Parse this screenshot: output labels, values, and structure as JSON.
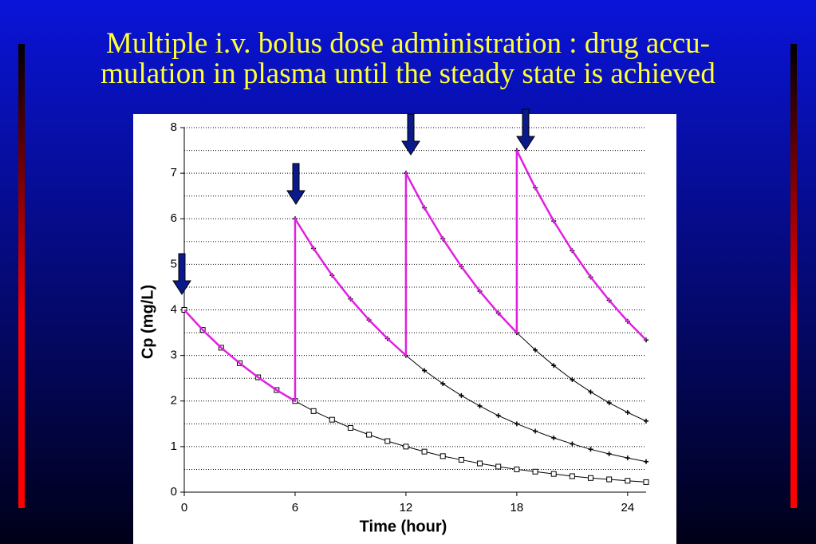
{
  "title_lines": [
    "Multiple i.v. bolus dose administration :  drug accu-",
    "mulation in plasma until the steady state is achieved"
  ],
  "chart_data": {
    "type": "line",
    "x_label": "Time (hour)",
    "y_label": "Cp (mg/L)",
    "xlim": [
      0,
      25
    ],
    "ylim": [
      0,
      8
    ],
    "xticks": [
      0,
      6,
      12,
      18,
      24
    ],
    "yticks": [
      0,
      1,
      2,
      3,
      4,
      5,
      6,
      7,
      8
    ],
    "yminor": [
      0.5,
      1.5,
      2.5,
      3.5,
      4.5,
      5.5,
      6.5,
      7.5
    ],
    "grid": true,
    "series": [
      {
        "color": "#000000",
        "marker": "square",
        "x": [
          0,
          1,
          2,
          3,
          4,
          5,
          6,
          7,
          8,
          9,
          10,
          11,
          12,
          13,
          14,
          15,
          16,
          17,
          18,
          19,
          20,
          21,
          22,
          23,
          24,
          25
        ],
        "values": [
          4,
          3.56,
          3.17,
          2.83,
          2.52,
          2.24,
          2,
          1.78,
          1.59,
          1.41,
          1.26,
          1.12,
          1,
          0.89,
          0.79,
          0.71,
          0.63,
          0.56,
          0.5,
          0.45,
          0.4,
          0.35,
          0.31,
          0.28,
          0.25,
          0.22
        ]
      },
      {
        "color": "#000000",
        "marker": "plus",
        "x": [
          6,
          7,
          8,
          9,
          10,
          11,
          12,
          13,
          14,
          15,
          16,
          17,
          18,
          19,
          20,
          21,
          22,
          23,
          24,
          25
        ],
        "values": [
          6,
          5.35,
          4.76,
          4.24,
          3.78,
          3.37,
          3,
          2.67,
          2.38,
          2.12,
          1.89,
          1.68,
          1.5,
          1.34,
          1.19,
          1.06,
          0.94,
          0.84,
          0.75,
          0.67
        ]
      },
      {
        "color": "#000000",
        "marker": "plus",
        "x": [
          12,
          13,
          14,
          15,
          16,
          17,
          18,
          19,
          20,
          21,
          22,
          23,
          24,
          25
        ],
        "values": [
          7,
          6.24,
          5.56,
          4.95,
          4.41,
          3.93,
          3.5,
          3.12,
          2.78,
          2.47,
          2.2,
          1.96,
          1.75,
          1.56
        ]
      },
      {
        "color": "#000000",
        "marker": "plus",
        "x": [
          18,
          19,
          20,
          21,
          22,
          23,
          24,
          25
        ],
        "values": [
          7.5,
          6.68,
          5.95,
          5.3,
          4.72,
          4.21,
          3.75,
          3.34
        ]
      },
      {
        "color": "#e020e0",
        "marker": "none",
        "width": 2.5,
        "x": [
          0,
          1,
          2,
          3,
          4,
          5,
          6,
          6,
          7,
          8,
          9,
          10,
          11,
          12,
          12,
          13,
          14,
          15,
          16,
          17,
          18,
          18,
          19,
          20,
          21,
          22,
          23,
          24,
          25
        ],
        "values": [
          4,
          3.56,
          3.17,
          2.83,
          2.52,
          2.24,
          2,
          6,
          5.35,
          4.76,
          4.24,
          3.78,
          3.37,
          3,
          7,
          6.24,
          5.56,
          4.95,
          4.41,
          3.93,
          3.5,
          7.5,
          6.68,
          5.95,
          5.3,
          4.72,
          4.21,
          3.75,
          3.34
        ]
      }
    ]
  }
}
